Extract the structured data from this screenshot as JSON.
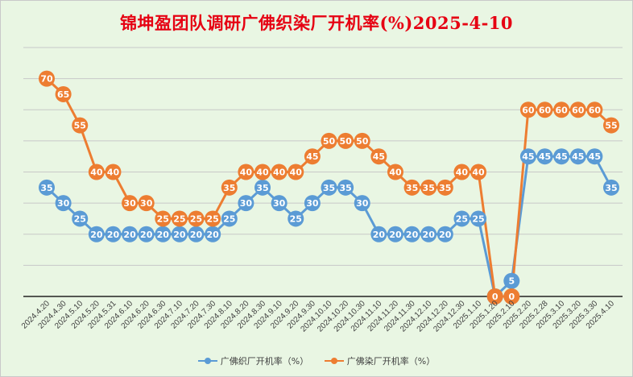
{
  "chart_data": {
    "type": "line",
    "title": "锦坤盈团队调研广佛织染厂开机率(%)2025-4-10",
    "xlabel": "",
    "ylabel": "",
    "ylim": [
      0,
      80
    ],
    "grid": true,
    "legend_position": "bottom",
    "categories": [
      "2024.4.20",
      "2024.4.30",
      "2024.5.10",
      "2024.5.20",
      "2024.5.31",
      "2024.6.10",
      "2024.6.20",
      "2024.6.30",
      "2024.7.10",
      "2024.7.20",
      "2024.7.30",
      "2024.8.10",
      "2024.8.20",
      "2024.8.30",
      "2024.9.10",
      "2024.9.20",
      "2024.9.30",
      "2024.10.10",
      "2024.10.20",
      "2024.10.30",
      "2024.11.10",
      "2024.11.20",
      "2024.11.30",
      "2024.12.10",
      "2024.12.20",
      "2024.12.30",
      "2025.1.10",
      "2025.1.20",
      "2025.2.10",
      "2025.2.20",
      "2025.2.28",
      "2025.3.10",
      "2025.3.20",
      "2025.3.30",
      "2025.4.10"
    ],
    "series": [
      {
        "name": "广佛织厂开机率（%）",
        "color": "#5b9bd5",
        "values": [
          35,
          30,
          25,
          20,
          20,
          20,
          20,
          20,
          20,
          20,
          20,
          25,
          30,
          35,
          30,
          25,
          30,
          35,
          35,
          30,
          20,
          20,
          20,
          20,
          20,
          25,
          25,
          0,
          5,
          45,
          45,
          45,
          45,
          45,
          35
        ]
      },
      {
        "name": "广佛染厂开机率（%）",
        "color": "#ed7d31",
        "values": [
          70,
          65,
          55,
          40,
          40,
          30,
          30,
          25,
          25,
          25,
          25,
          35,
          40,
          40,
          40,
          40,
          45,
          50,
          50,
          50,
          45,
          40,
          35,
          35,
          35,
          40,
          40,
          0,
          0,
          60,
          60,
          60,
          60,
          60,
          55
        ]
      }
    ]
  }
}
